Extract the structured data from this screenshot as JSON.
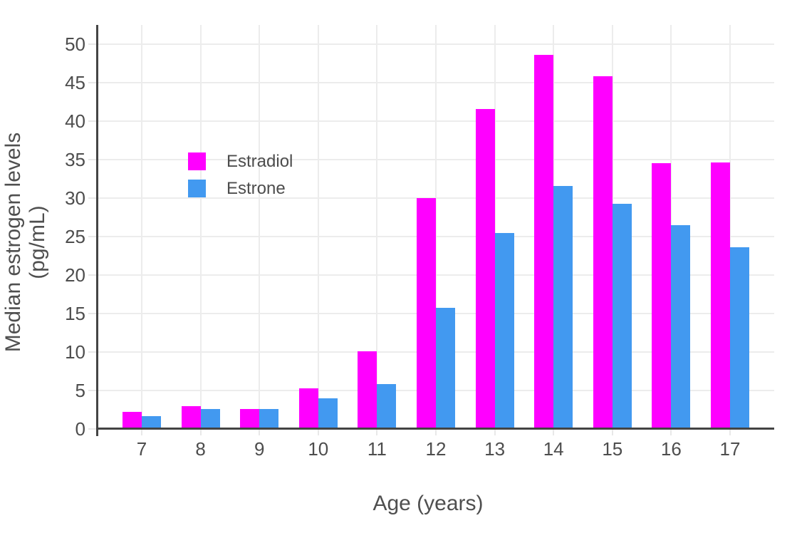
{
  "chart_data": {
    "type": "bar",
    "title": "",
    "xlabel": "Age (years)",
    "ylabel": "Median estrogen levels (pg/mL)",
    "categories": [
      7,
      8,
      9,
      10,
      11,
      12,
      13,
      14,
      15,
      16,
      17
    ],
    "series": [
      {
        "name": "Estradiol",
        "color": "#ff00ff",
        "values": [
          2.2,
          3.0,
          2.6,
          5.3,
          10.1,
          30.0,
          41.6,
          48.6,
          45.8,
          34.5,
          34.6
        ]
      },
      {
        "name": "Estrone",
        "color": "#4299f0",
        "values": [
          1.7,
          2.6,
          2.6,
          4.0,
          5.8,
          15.7,
          25.5,
          31.6,
          29.3,
          26.5,
          23.6
        ]
      }
    ],
    "ylim": [
      0,
      52.5
    ],
    "yticks": [
      0,
      5,
      10,
      15,
      20,
      25,
      30,
      35,
      40,
      45,
      50
    ],
    "grid": true,
    "legend_position": "inside-upper-left",
    "legend": [
      "Estradiol",
      "Estrone"
    ]
  },
  "colors": {
    "estradiol": "#ff00ff",
    "estrone": "#4299f0",
    "axis_line": "#444444",
    "gridline": "#ececec",
    "text": "#4d4d4d",
    "background": "#ffffff"
  }
}
